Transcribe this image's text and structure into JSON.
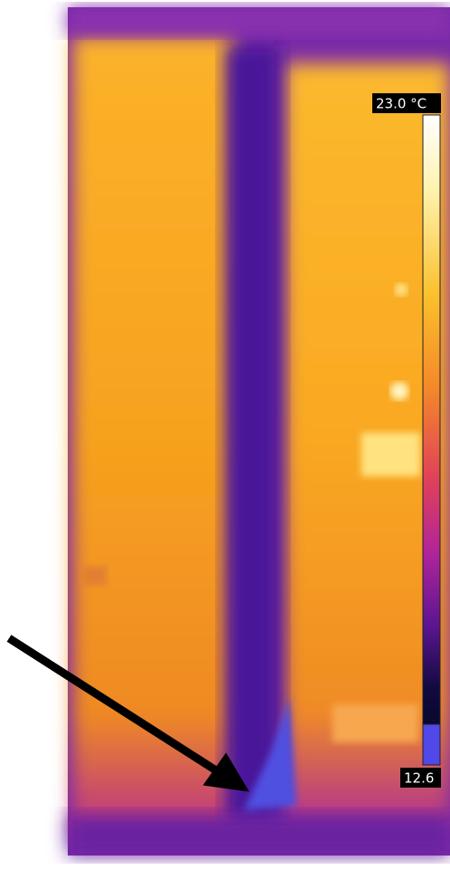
{
  "scale": {
    "max_label": "23.0 °C",
    "min_label": "12.6"
  }
}
